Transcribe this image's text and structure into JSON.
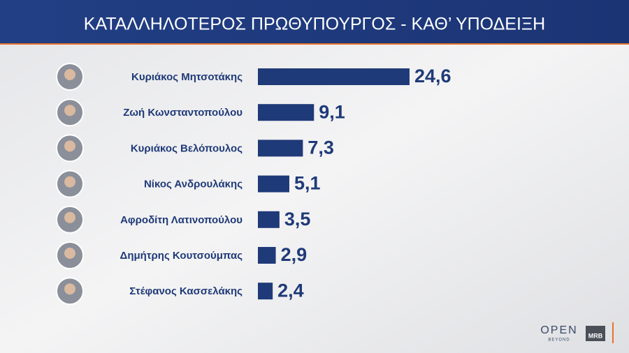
{
  "chart_data": {
    "type": "bar",
    "orientation": "horizontal",
    "title": "ΚΑΤΑΛΛΗΛΟΤΕΡΟΣ  ΠΡΩΘΥΠΟΥΡΓΟΣ - ΚΑΘ’ ΥΠΟΔΕΙΞΗ",
    "categories": [
      "Κυριάκος Μητσοτάκης",
      "Ζωή Κωνσταντοπούλου",
      "Κυριάκος Βελόπουλος",
      "Νίκος Ανδρουλάκης",
      "Αφροδίτη Λατινοπούλου",
      "Δημήτρης Κουτσούμπας",
      "Στέφανος Κασσελάκης"
    ],
    "values": [
      24.6,
      9.1,
      7.3,
      5.1,
      3.5,
      2.9,
      2.4
    ],
    "value_labels": [
      "24,6",
      "9,1",
      "7,3",
      "5,1",
      "3,5",
      "2,9",
      "2,4"
    ],
    "color": "#1f3a78"
  },
  "branding": {
    "channel": "OPEN",
    "tagline": "BEYOND",
    "pollster": "MRB"
  }
}
